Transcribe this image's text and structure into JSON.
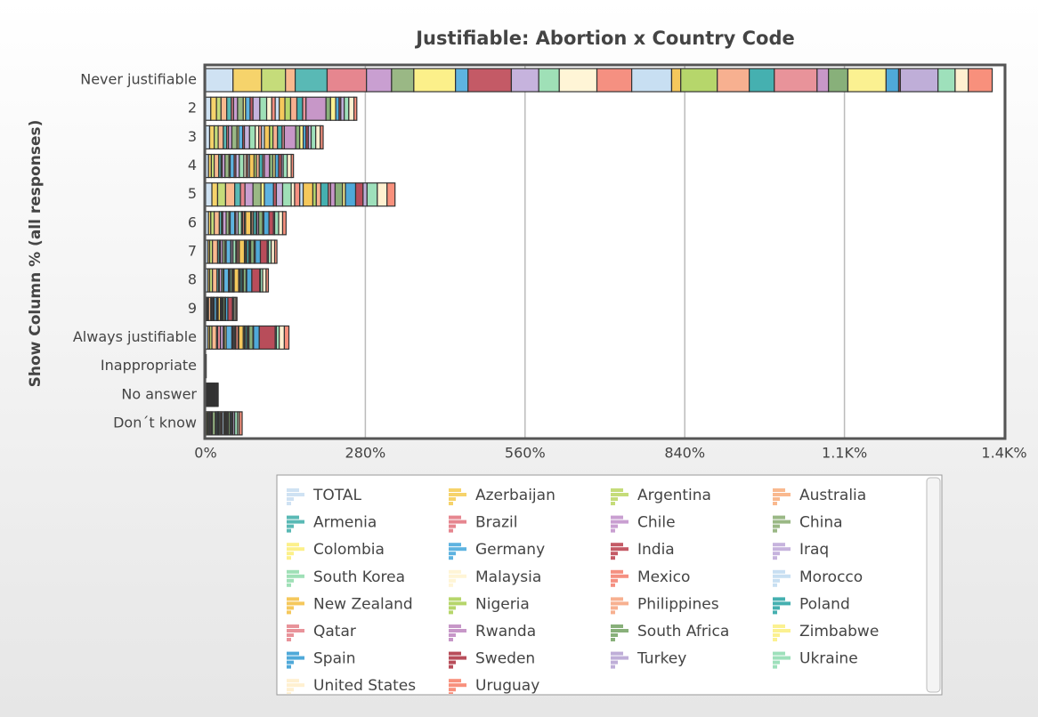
{
  "chart_data": {
    "type": "bar",
    "orientation": "horizontal",
    "stacked": true,
    "title": "Justifiable: Abortion x Country Code",
    "ylabel": "Show Column % (all responses)",
    "categories": [
      "Never justifiable",
      "2",
      "3",
      "4",
      "5",
      "6",
      "7",
      "8",
      "9",
      "Always justifiable",
      "Inappropriate",
      "No answer",
      "Don´t know"
    ],
    "xlim": [
      0,
      1400
    ],
    "xticks": [
      {
        "value": 0,
        "label": "0%"
      },
      {
        "value": 280,
        "label": "280%"
      },
      {
        "value": 560,
        "label": "560%"
      },
      {
        "value": 840,
        "label": "840%"
      },
      {
        "value": 1120,
        "label": "1.1K%"
      },
      {
        "value": 1400,
        "label": "1.4K%"
      }
    ],
    "grid": true,
    "series": [
      {
        "name": "TOTAL",
        "color": "#cfe2f3",
        "values": [
          48,
          9,
          7,
          5,
          11,
          5,
          4,
          4,
          2,
          4,
          0,
          1,
          0
        ]
      },
      {
        "name": "Azerbaijan",
        "color": "#f6d36b",
        "values": [
          50,
          10,
          8,
          5,
          10,
          4,
          3,
          3,
          1,
          3,
          0,
          1,
          2
        ]
      },
      {
        "name": "Argentina",
        "color": "#c5dc7a",
        "values": [
          42,
          8,
          7,
          5,
          14,
          6,
          5,
          5,
          2,
          4,
          0,
          0,
          2
        ]
      },
      {
        "name": "Australia",
        "color": "#f9b98f",
        "values": [
          17,
          10,
          9,
          8,
          16,
          9,
          9,
          8,
          4,
          8,
          0,
          0,
          2
        ]
      },
      {
        "name": "Armenia",
        "color": "#59b9b5",
        "values": [
          56,
          8,
          6,
          4,
          10,
          4,
          3,
          3,
          1,
          2,
          0,
          1,
          2
        ]
      },
      {
        "name": "Brazil",
        "color": "#e6868f",
        "values": [
          69,
          4,
          3,
          2,
          8,
          2,
          2,
          1,
          1,
          5,
          0,
          1,
          2
        ]
      },
      {
        "name": "Chile",
        "color": "#c99fd1",
        "values": [
          44,
          7,
          6,
          5,
          14,
          6,
          4,
          4,
          2,
          5,
          0,
          1,
          2
        ]
      },
      {
        "name": "China",
        "color": "#9ab885",
        "values": [
          39,
          10,
          9,
          7,
          14,
          5,
          4,
          3,
          1,
          2,
          0,
          1,
          5
        ]
      },
      {
        "name": "Colombia",
        "color": "#fcf08a",
        "values": [
          73,
          4,
          3,
          2,
          6,
          2,
          2,
          1,
          1,
          3,
          0,
          1,
          2
        ]
      },
      {
        "name": "Germany",
        "color": "#5eb3e0",
        "values": [
          22,
          8,
          7,
          7,
          16,
          8,
          8,
          8,
          4,
          10,
          0,
          0,
          2
        ]
      },
      {
        "name": "India",
        "color": "#c45a66",
        "values": [
          76,
          5,
          3,
          3,
          5,
          2,
          1,
          1,
          0,
          2,
          0,
          1,
          1
        ]
      },
      {
        "name": "Iraq",
        "color": "#c6b3dd",
        "values": [
          48,
          12,
          9,
          6,
          11,
          4,
          3,
          2,
          1,
          2,
          0,
          1,
          1
        ]
      },
      {
        "name": "South Korea",
        "color": "#9fe0b7",
        "values": [
          36,
          12,
          10,
          8,
          15,
          6,
          5,
          3,
          1,
          2,
          0,
          0,
          2
        ]
      },
      {
        "name": "Malaysia",
        "color": "#fff5d6",
        "values": [
          66,
          9,
          6,
          4,
          6,
          2,
          2,
          1,
          0,
          1,
          0,
          1,
          2
        ]
      },
      {
        "name": "Mexico",
        "color": "#f59081",
        "values": [
          61,
          6,
          5,
          3,
          9,
          3,
          3,
          2,
          1,
          4,
          0,
          1,
          2
        ]
      },
      {
        "name": "Morocco",
        "color": "#c8dff2",
        "values": [
          70,
          7,
          5,
          3,
          6,
          2,
          1,
          1,
          0,
          1,
          0,
          1,
          3
        ]
      },
      {
        "name": "New Zealand",
        "color": "#f5c85c",
        "values": [
          16,
          10,
          9,
          8,
          17,
          9,
          9,
          8,
          4,
          8,
          0,
          0,
          2
        ]
      },
      {
        "name": "Nigeria",
        "color": "#b6d66b",
        "values": [
          64,
          10,
          6,
          4,
          6,
          2,
          2,
          1,
          1,
          2,
          0,
          1,
          1
        ]
      },
      {
        "name": "Philippines",
        "color": "#f7b090",
        "values": [
          56,
          11,
          8,
          5,
          8,
          3,
          2,
          2,
          1,
          2,
          0,
          0,
          2
        ]
      },
      {
        "name": "Poland",
        "color": "#45b0b0",
        "values": [
          44,
          10,
          8,
          6,
          13,
          5,
          4,
          3,
          2,
          3,
          0,
          1,
          1
        ]
      },
      {
        "name": "Qatar",
        "color": "#e8939a",
        "values": [
          75,
          6,
          4,
          3,
          4,
          1,
          1,
          1,
          0,
          2,
          0,
          1,
          2
        ]
      },
      {
        "name": "Rwanda",
        "color": "#c797c8",
        "values": [
          20,
          35,
          20,
          9,
          8,
          3,
          2,
          1,
          1,
          1,
          0,
          0,
          0
        ]
      },
      {
        "name": "South Africa",
        "color": "#88b07a",
        "values": [
          34,
          8,
          7,
          6,
          13,
          7,
          6,
          5,
          3,
          7,
          0,
          1,
          3
        ]
      },
      {
        "name": "Zimbabwe",
        "color": "#fbf191",
        "values": [
          67,
          9,
          6,
          4,
          5,
          2,
          2,
          1,
          1,
          1,
          0,
          1,
          1
        ]
      },
      {
        "name": "Spain",
        "color": "#4fa9d9",
        "values": [
          22,
          6,
          5,
          6,
          18,
          9,
          9,
          9,
          4,
          10,
          0,
          0,
          2
        ]
      },
      {
        "name": "Sweden",
        "color": "#b84d5a",
        "values": [
          3,
          3,
          4,
          5,
          13,
          8,
          12,
          14,
          8,
          28,
          0,
          0,
          2
        ]
      },
      {
        "name": "Turkey",
        "color": "#bfaed8",
        "values": [
          66,
          6,
          5,
          3,
          7,
          2,
          2,
          1,
          1,
          2,
          0,
          2,
          3
        ]
      },
      {
        "name": "Ukraine",
        "color": "#9ee0bb",
        "values": [
          30,
          8,
          8,
          7,
          18,
          7,
          5,
          4,
          2,
          5,
          0,
          1,
          5
        ]
      },
      {
        "name": "United States",
        "color": "#fff0d0",
        "values": [
          23,
          9,
          8,
          7,
          17,
          7,
          6,
          6,
          3,
          9,
          1,
          1,
          3
        ]
      },
      {
        "name": "Uruguay",
        "color": "#f8907c",
        "values": [
          42,
          5,
          5,
          4,
          14,
          6,
          4,
          4,
          2,
          8,
          0,
          1,
          5
        ]
      }
    ]
  }
}
